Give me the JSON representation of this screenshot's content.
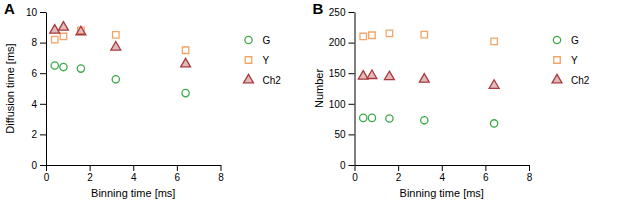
{
  "chart_data": [
    {
      "type": "scatter",
      "title": "A",
      "xlabel": "Binning time [ms]",
      "ylabel": "Diffusion time [ms]",
      "x": [
        0.4,
        0.8,
        1.6,
        3.2,
        6.4
      ],
      "xlim": [
        0,
        8
      ],
      "xticks": [
        0,
        2,
        4,
        6,
        8
      ],
      "ylim": [
        0,
        10
      ],
      "yticks": [
        0,
        2,
        4,
        6,
        8,
        10
      ],
      "legend": "right",
      "series": [
        {
          "name": "G",
          "color": "#3daa4a",
          "marker": "circle",
          "values": [
            6.5,
            6.4,
            6.3,
            5.6,
            4.7
          ]
        },
        {
          "name": "Y",
          "color": "#f2a566",
          "marker": "square",
          "values": [
            8.2,
            8.4,
            8.8,
            8.5,
            7.5
          ]
        },
        {
          "name": "Ch2",
          "color": "#a8393c",
          "marker": "triangle",
          "values": [
            8.8,
            9.0,
            8.7,
            7.7,
            6.6
          ]
        }
      ]
    },
    {
      "type": "scatter",
      "title": "B",
      "xlabel": "Binning time [ms]",
      "ylabel": "Number",
      "x": [
        0.4,
        0.8,
        1.6,
        3.2,
        6.4
      ],
      "xlim": [
        0,
        8
      ],
      "xticks": [
        0,
        2,
        4,
        6,
        8
      ],
      "ylim": [
        0,
        250
      ],
      "yticks": [
        0,
        50,
        100,
        150,
        200,
        250
      ],
      "legend": "right",
      "series": [
        {
          "name": "G",
          "color": "#3daa4a",
          "marker": "circle",
          "values": [
            77,
            77,
            76,
            73,
            68
          ]
        },
        {
          "name": "Y",
          "color": "#f2a566",
          "marker": "square",
          "values": [
            210,
            212,
            215,
            213,
            202
          ]
        },
        {
          "name": "Ch2",
          "color": "#a8393c",
          "marker": "triangle",
          "values": [
            145,
            146,
            144,
            140,
            130
          ]
        }
      ]
    }
  ]
}
